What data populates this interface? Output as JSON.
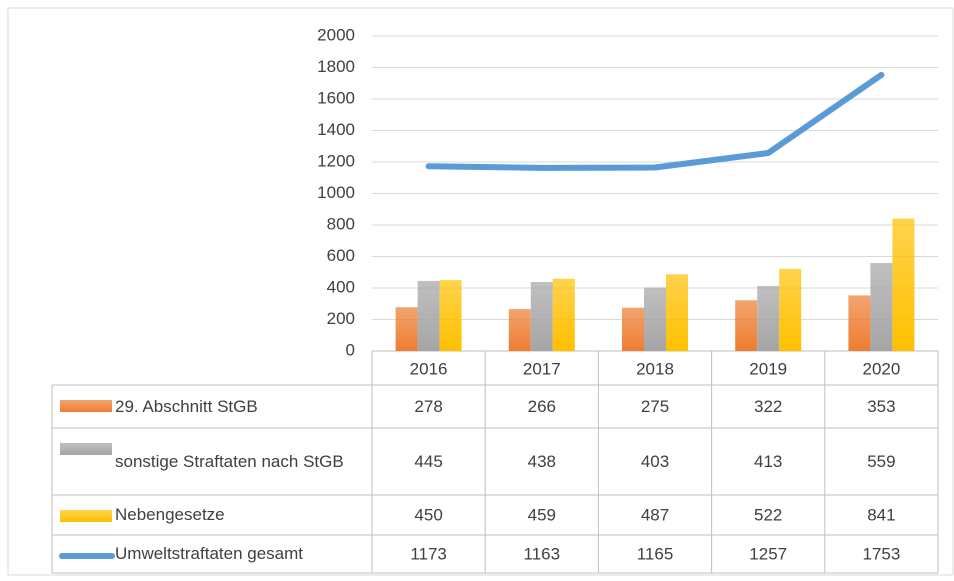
{
  "chart_data": {
    "type": "bar-line-table",
    "categories": [
      "2016",
      "2017",
      "2018",
      "2019",
      "2020"
    ],
    "series": [
      {
        "name": "29. Abschnitt StGB",
        "type": "bar",
        "color": "#ed7d31",
        "values": [
          278,
          266,
          275,
          322,
          353
        ]
      },
      {
        "name": "sonstige Straftaten nach StGB",
        "type": "bar",
        "color": "#a5a5a5",
        "values": [
          445,
          438,
          403,
          413,
          559
        ]
      },
      {
        "name": "Nebengesetze",
        "type": "bar",
        "color": "#ffc000",
        "values": [
          450,
          459,
          487,
          522,
          841
        ]
      },
      {
        "name": "Umweltstraftaten gesamt",
        "type": "line",
        "color": "#5b9bd5",
        "values": [
          1173,
          1163,
          1165,
          1257,
          1753
        ]
      }
    ],
    "ylim": [
      0,
      2000
    ],
    "yticks": [
      0,
      200,
      400,
      600,
      800,
      1000,
      1200,
      1400,
      1600,
      1800,
      2000
    ],
    "grid": true
  }
}
